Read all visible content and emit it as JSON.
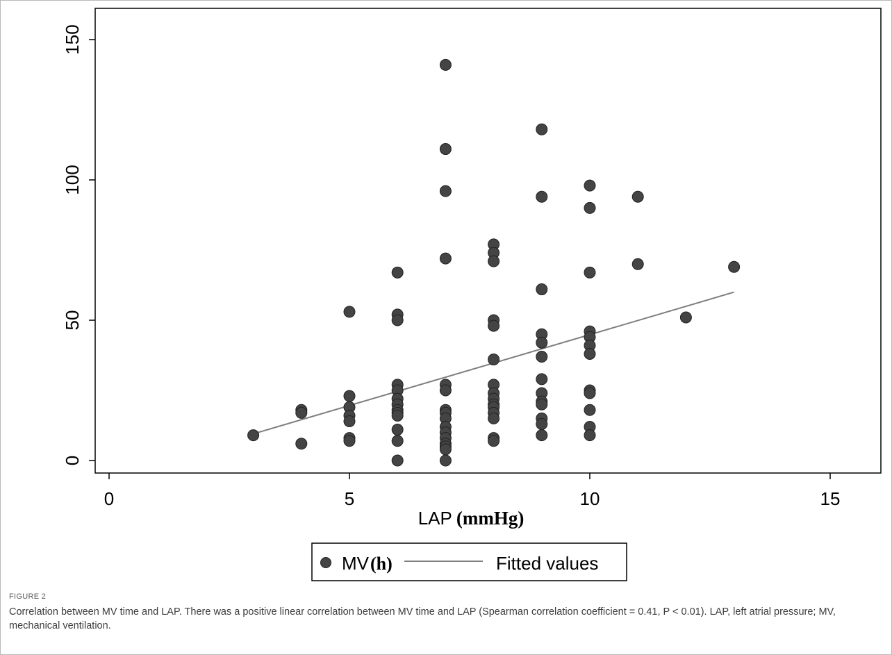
{
  "chart_data": {
    "type": "scatter",
    "xlabel_main": "LAP",
    "xlabel_unit": "(mmHg)",
    "xlim": [
      0,
      15
    ],
    "ylim": [
      0,
      150
    ],
    "xticks": [
      "0",
      "5",
      "10",
      "15"
    ],
    "yticks": [
      "0",
      "50",
      "100",
      "150"
    ],
    "grid": false,
    "legend_position": "bottom",
    "series": [
      {
        "name_main": "MV",
        "name_unit": "(h)",
        "kind": "scatter",
        "color": "#444444",
        "points": [
          [
            3,
            9
          ],
          [
            4,
            18
          ],
          [
            4,
            17
          ],
          [
            4,
            6
          ],
          [
            5,
            53
          ],
          [
            5,
            23
          ],
          [
            5,
            19
          ],
          [
            5,
            16
          ],
          [
            5,
            14
          ],
          [
            5,
            8
          ],
          [
            5,
            7
          ],
          [
            6,
            67
          ],
          [
            6,
            52
          ],
          [
            6,
            50
          ],
          [
            6,
            27
          ],
          [
            6,
            25
          ],
          [
            6,
            22
          ],
          [
            6,
            20
          ],
          [
            6,
            18
          ],
          [
            6,
            17
          ],
          [
            6,
            16
          ],
          [
            6,
            11
          ],
          [
            6,
            7
          ],
          [
            6,
            0
          ],
          [
            7,
            141
          ],
          [
            7,
            111
          ],
          [
            7,
            96
          ],
          [
            7,
            72
          ],
          [
            7,
            27
          ],
          [
            7,
            25
          ],
          [
            7,
            18
          ],
          [
            7,
            17
          ],
          [
            7,
            15
          ],
          [
            7,
            12
          ],
          [
            7,
            10
          ],
          [
            7,
            8
          ],
          [
            7,
            6
          ],
          [
            7,
            5
          ],
          [
            7,
            4
          ],
          [
            7,
            0
          ],
          [
            8,
            77
          ],
          [
            8,
            74
          ],
          [
            8,
            71
          ],
          [
            8,
            50
          ],
          [
            8,
            48
          ],
          [
            8,
            36
          ],
          [
            8,
            27
          ],
          [
            8,
            24
          ],
          [
            8,
            22
          ],
          [
            8,
            20
          ],
          [
            8,
            19
          ],
          [
            8,
            17
          ],
          [
            8,
            15
          ],
          [
            8,
            8
          ],
          [
            8,
            7
          ],
          [
            9,
            118
          ],
          [
            9,
            94
          ],
          [
            9,
            61
          ],
          [
            9,
            45
          ],
          [
            9,
            42
          ],
          [
            9,
            37
          ],
          [
            9,
            29
          ],
          [
            9,
            24
          ],
          [
            9,
            21
          ],
          [
            9,
            20
          ],
          [
            9,
            15
          ],
          [
            9,
            13
          ],
          [
            9,
            9
          ],
          [
            10,
            98
          ],
          [
            10,
            90
          ],
          [
            10,
            67
          ],
          [
            10,
            46
          ],
          [
            10,
            44
          ],
          [
            10,
            41
          ],
          [
            10,
            38
          ],
          [
            10,
            25
          ],
          [
            10,
            24
          ],
          [
            10,
            18
          ],
          [
            10,
            12
          ],
          [
            10,
            9
          ],
          [
            11,
            94
          ],
          [
            11,
            70
          ],
          [
            12,
            51
          ],
          [
            13,
            69
          ]
        ]
      },
      {
        "name": "Fitted values",
        "kind": "line",
        "color": "#7f7f7f",
        "x": [
          3,
          13
        ],
        "y": [
          9.5,
          60
        ]
      }
    ]
  },
  "caption": {
    "figure_label": "FIGURE 2",
    "text": "Correlation between MV time and LAP. There was a positive linear correlation between MV time and LAP (Spearman correlation coefficient = 0.41, P < 0.01). LAP, left atrial pressure; MV, mechanical ventilation."
  }
}
